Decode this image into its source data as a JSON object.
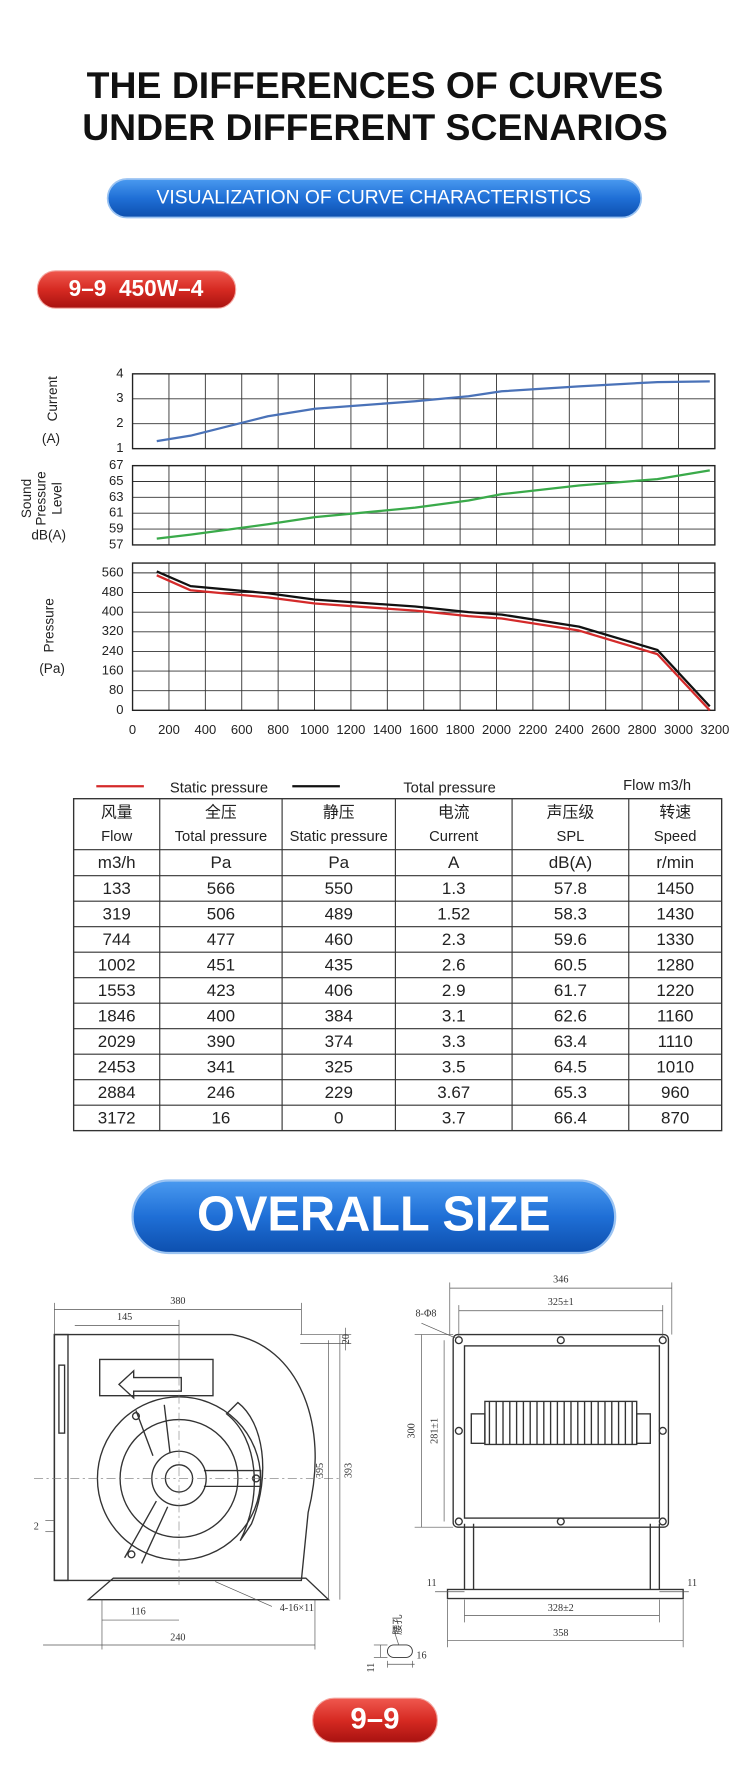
{
  "header": {
    "title": [
      "THE DIFFERENCES OF CURVES",
      "UNDER DIFFERENT SCENARIOS"
    ],
    "subtitle": "VISUALIZATION OF CURVE CHARACTERISTICS"
  },
  "model_badge": "9–9  450W–4",
  "chart_data": [
    {
      "type": "line",
      "ylabel": [
        "Current",
        "(A)"
      ],
      "color": "#4a72b8",
      "x": [
        133,
        319,
        744,
        1002,
        1553,
        1846,
        2029,
        2453,
        2884,
        3172
      ],
      "values": [
        1.3,
        1.52,
        2.3,
        2.6,
        2.9,
        3.1,
        3.3,
        3.5,
        3.67,
        3.7
      ],
      "xlim": [
        0,
        3200
      ],
      "xticks": [
        0,
        200,
        400,
        600,
        800,
        1000,
        1200,
        1400,
        1600,
        1800,
        2000,
        2200,
        2400,
        2600,
        2800,
        3000,
        3200
      ],
      "ylim": [
        1,
        4
      ],
      "yticks": [
        1,
        2,
        3,
        4
      ],
      "grid": true
    },
    {
      "type": "line",
      "ylabel": [
        "Sound",
        "Pressure",
        "Level",
        "dB(A)"
      ],
      "color": "#3aaa4a",
      "x": [
        133,
        319,
        744,
        1002,
        1553,
        1846,
        2029,
        2453,
        2884,
        3172
      ],
      "values": [
        57.8,
        58.3,
        59.6,
        60.5,
        61.7,
        62.6,
        63.4,
        64.5,
        65.3,
        66.4
      ],
      "xlim": [
        0,
        3200
      ],
      "xticks": [
        0,
        200,
        400,
        600,
        800,
        1000,
        1200,
        1400,
        1600,
        1800,
        2000,
        2200,
        2400,
        2600,
        2800,
        3000,
        3200
      ],
      "ylim": [
        57,
        67
      ],
      "yticks": [
        57,
        59,
        61,
        63,
        65,
        67
      ],
      "grid": true
    },
    {
      "type": "line",
      "ylabel": [
        "Pressure",
        "(Pa)"
      ],
      "xlabel": "Flow m3/h",
      "x": [
        133,
        319,
        744,
        1002,
        1553,
        1846,
        2029,
        2453,
        2884,
        3172
      ],
      "series": [
        {
          "name": "Static pressure",
          "color": "#d42a2a",
          "values": [
            550,
            489,
            460,
            435,
            406,
            384,
            374,
            325,
            229,
            0
          ]
        },
        {
          "name": "Total pressure",
          "color": "#111111",
          "values": [
            566,
            506,
            477,
            451,
            423,
            400,
            390,
            341,
            246,
            16
          ]
        }
      ],
      "xlim": [
        0,
        3200
      ],
      "xticks": [
        0,
        200,
        400,
        600,
        800,
        1000,
        1200,
        1400,
        1600,
        1800,
        2000,
        2200,
        2400,
        2600,
        2800,
        3000,
        3200
      ],
      "ylim": [
        0,
        600
      ],
      "yticks": [
        0,
        80,
        160,
        240,
        320,
        400,
        480,
        560
      ],
      "grid": true
    }
  ],
  "table": {
    "header_cn": [
      "风量",
      "全压",
      "静压",
      "电流",
      "声压级",
      "转速"
    ],
    "header_en": [
      "Flow",
      "Total pressure",
      "Static pressure",
      "Current",
      "SPL",
      "Speed"
    ],
    "units": [
      "m3/h",
      "Pa",
      "Pa",
      "A",
      "dB(A)",
      "r/min"
    ],
    "rows": [
      [
        133,
        566,
        550,
        1.3,
        57.8,
        1450
      ],
      [
        319,
        506,
        489,
        1.52,
        58.3,
        1430
      ],
      [
        744,
        477,
        460,
        2.3,
        59.6,
        1330
      ],
      [
        1002,
        451,
        435,
        2.6,
        60.5,
        1280
      ],
      [
        1553,
        423,
        406,
        2.9,
        61.7,
        1220
      ],
      [
        1846,
        400,
        384,
        3.1,
        62.6,
        1160
      ],
      [
        2029,
        390,
        374,
        3.3,
        63.4,
        1110
      ],
      [
        2453,
        341,
        325,
        3.5,
        64.5,
        1010
      ],
      [
        2884,
        246,
        229,
        3.67,
        65.3,
        960
      ],
      [
        3172,
        16,
        0,
        3.7,
        66.4,
        870
      ]
    ]
  },
  "section_title": "OVERALL SIZE",
  "drawings": {
    "side_view": [
      "380",
      "145",
      "20",
      "395",
      "393",
      "2",
      "116",
      "240",
      "4-16×11"
    ],
    "front_view": [
      "346",
      "325±1",
      "8-Φ8",
      "300",
      "281±1",
      "11",
      "11",
      "328±2",
      "358"
    ],
    "slot_detail": [
      "腰孔",
      "11",
      "16"
    ]
  },
  "footer_badge": "9–9"
}
